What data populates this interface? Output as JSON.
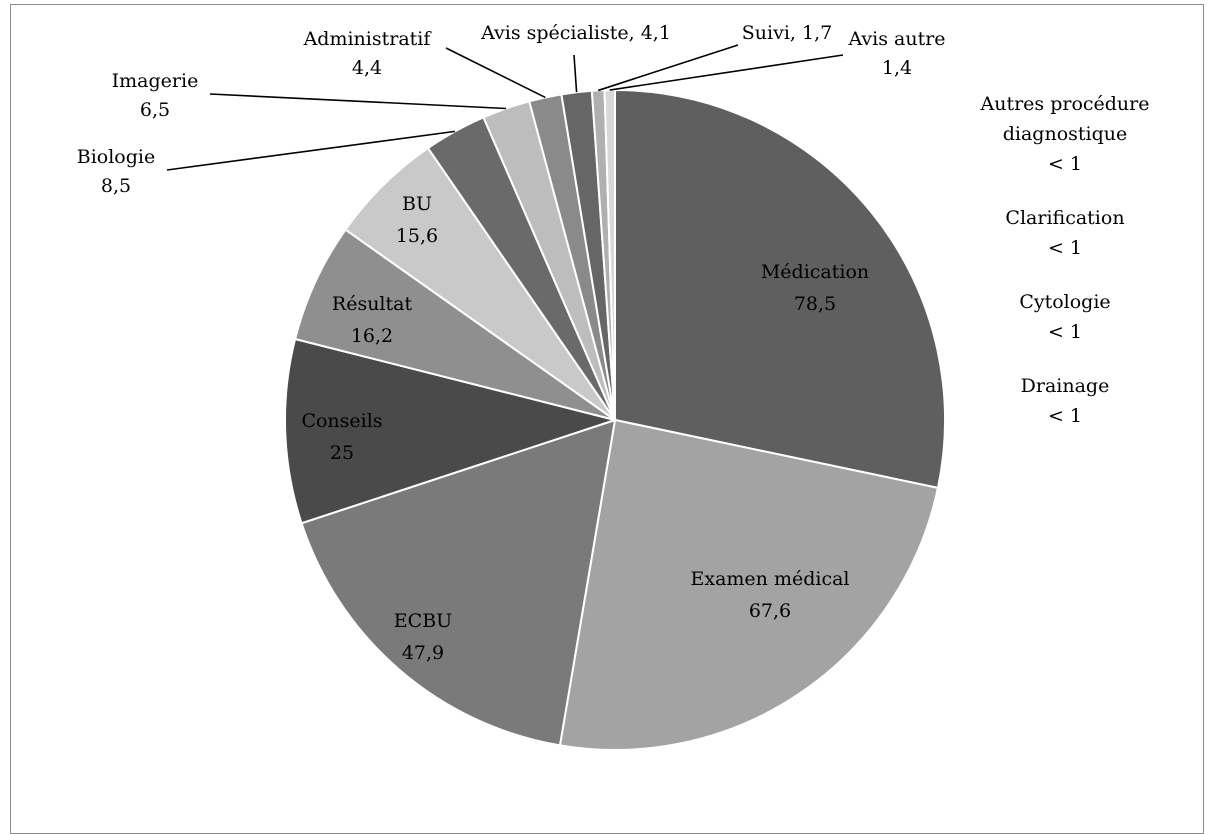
{
  "chart_data": {
    "type": "pie",
    "title": "",
    "slices": [
      {
        "label": "Médication",
        "value": 78.5,
        "display": "78,5",
        "color": "#5f5f5f"
      },
      {
        "label": "Examen médical",
        "value": 67.6,
        "display": "67,6",
        "color": "#a3a3a3"
      },
      {
        "label": "ECBU",
        "value": 47.9,
        "display": "47,9",
        "color": "#7a7a7a"
      },
      {
        "label": "Conseils",
        "value": 25,
        "display": "25",
        "color": "#4a4a4a"
      },
      {
        "label": "Résultat",
        "value": 16.2,
        "display": "16,2",
        "color": "#8f8f8f"
      },
      {
        "label": "BU",
        "value": 15.6,
        "display": "15,6",
        "color": "#c9c9c9"
      },
      {
        "label": "Biologie",
        "value": 8.5,
        "display": "8,5",
        "color": "#6a6a6a"
      },
      {
        "label": "Imagerie",
        "value": 6.5,
        "display": "6,5",
        "color": "#bdbdbd"
      },
      {
        "label": "Administratif",
        "value": 4.4,
        "display": "4,4",
        "color": "#8a8a8a"
      },
      {
        "label": "Avis spécialiste",
        "value": 4.1,
        "display": "4,1",
        "color": "#666666"
      },
      {
        "label": "Suivi",
        "value": 1.7,
        "display": "1,7",
        "color": "#b0b0b0"
      },
      {
        "label": "Avis autre",
        "value": 1.4,
        "display": "1,4",
        "color": "#d8d8d8"
      }
    ],
    "small_entries": [
      {
        "label_lines": [
          "Autres procédure",
          "diagnostique"
        ],
        "value_text": "< 1"
      },
      {
        "label_lines": [
          "Clarification"
        ],
        "value_text": "< 1"
      },
      {
        "label_lines": [
          "Cytologie"
        ],
        "value_text": "< 1"
      },
      {
        "label_lines": [
          "Drainage"
        ],
        "value_text": "< 1"
      }
    ]
  }
}
